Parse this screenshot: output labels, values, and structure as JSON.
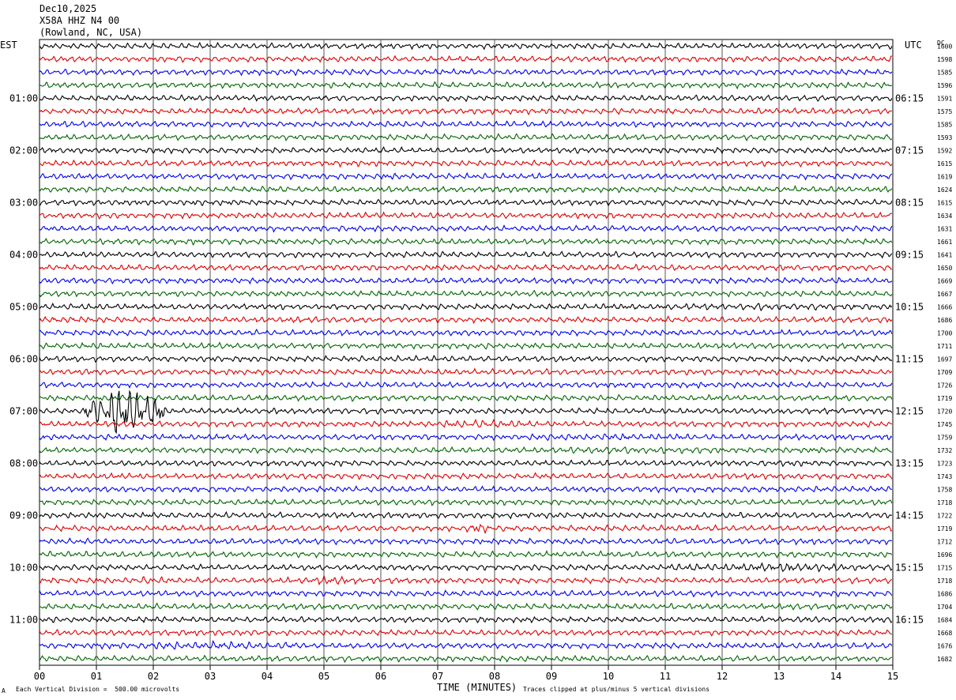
{
  "header": {
    "date": "Dec10,2025",
    "station": "X58A HHZ N4 00",
    "location": "(Rowland, NC, USA)"
  },
  "left_label": "EST",
  "right_label": "UTC",
  "dc_label": "DC",
  "footer": {
    "scale_note": "Each Vertical Division =  500.00 microvolts",
    "clip_note": "Traces clipped at plus/minus 5 vertical divisions",
    "corner_mark": "A"
  },
  "colors": {
    "trace": [
      "#000000",
      "#dd0000",
      "#0000ee",
      "#006600"
    ],
    "grid": "#555555"
  },
  "chart_data": {
    "type": "line",
    "title": "",
    "xlabel": "TIME (MINUTES)",
    "x_ticks": [
      "00",
      "01",
      "02",
      "03",
      "04",
      "05",
      "06",
      "07",
      "08",
      "09",
      "10",
      "11",
      "12",
      "13",
      "14",
      "15"
    ],
    "xlim": [
      0,
      15
    ],
    "rows": 48,
    "minutes_per_row": 15,
    "est_hour_labels": [
      "01:00",
      "02:00",
      "03:00",
      "04:00",
      "05:00",
      "06:00",
      "07:00",
      "08:00",
      "09:00",
      "10:00",
      "11:00"
    ],
    "utc_hour_labels": [
      "06:15",
      "07:15",
      "08:15",
      "09:15",
      "10:15",
      "11:15",
      "12:15",
      "13:15",
      "14:15",
      "15:15",
      "16:15"
    ],
    "dc_offsets": [
      1600,
      1598,
      1585,
      1596,
      1591,
      1575,
      1585,
      1593,
      1592,
      1615,
      1619,
      1624,
      1615,
      1634,
      1631,
      1661,
      1641,
      1650,
      1669,
      1667,
      1666,
      1686,
      1700,
      1711,
      1697,
      1709,
      1726,
      1719,
      1720,
      1745,
      1759,
      1732,
      1723,
      1743,
      1758,
      1718,
      1722,
      1719,
      1712,
      1696,
      1715,
      1718,
      1686,
      1704,
      1684,
      1668,
      1676,
      1682
    ],
    "events": [
      {
        "row": 28,
        "start_min": 0.8,
        "end_min": 2.2,
        "amplitude": 5,
        "clipped": true
      },
      {
        "row": 29,
        "start_min": 7.0,
        "end_min": 8.5,
        "amplitude": 1.6
      },
      {
        "row": 30,
        "start_min": 8.5,
        "end_min": 11.5,
        "amplitude": 1.3
      },
      {
        "row": 31,
        "start_min": 8.6,
        "end_min": 12.0,
        "amplitude": 1.3
      },
      {
        "row": 37,
        "start_min": 7.5,
        "end_min": 7.9,
        "amplitude": 2.2
      },
      {
        "row": 40,
        "start_min": 11.0,
        "end_min": 15.0,
        "amplitude": 1.6
      },
      {
        "row": 41,
        "start_min": 1.6,
        "end_min": 2.2,
        "amplitude": 1.4
      },
      {
        "row": 41,
        "start_min": 4.2,
        "end_min": 5.8,
        "amplitude": 1.6
      },
      {
        "row": 46,
        "start_min": 0.9,
        "end_min": 4.6,
        "amplitude": 1.5
      },
      {
        "row": 20,
        "start_min": 11.0,
        "end_min": 15.0,
        "amplitude": 1.3
      },
      {
        "row": 21,
        "start_min": 0.0,
        "end_min": 1.0,
        "amplitude": 1.3
      }
    ]
  }
}
